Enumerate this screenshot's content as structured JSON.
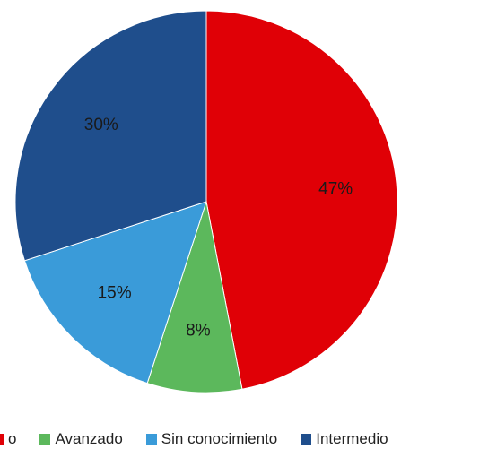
{
  "chart_data": {
    "type": "pie",
    "title": "",
    "slices": [
      {
        "label": "Básico",
        "value": 47,
        "display": "47%",
        "color": "#e00006"
      },
      {
        "label": "Avanzado",
        "value": 8,
        "display": "8%",
        "color": "#5cb85c"
      },
      {
        "label": "Sin conocimiento",
        "value": 15,
        "display": "15%",
        "color": "#3a9bd9"
      },
      {
        "label": "Intermedio",
        "value": 30,
        "display": "30%",
        "color": "#1f4e8c"
      }
    ],
    "legend": {
      "placement": "bottom",
      "items": [
        {
          "label": "o",
          "color": "#e00006"
        },
        {
          "label": "Avanzado",
          "color": "#5cb85c"
        },
        {
          "label": "Sin conocimiento",
          "color": "#3a9bd9"
        },
        {
          "label": "Intermedio",
          "color": "#1f4e8c"
        }
      ]
    }
  }
}
